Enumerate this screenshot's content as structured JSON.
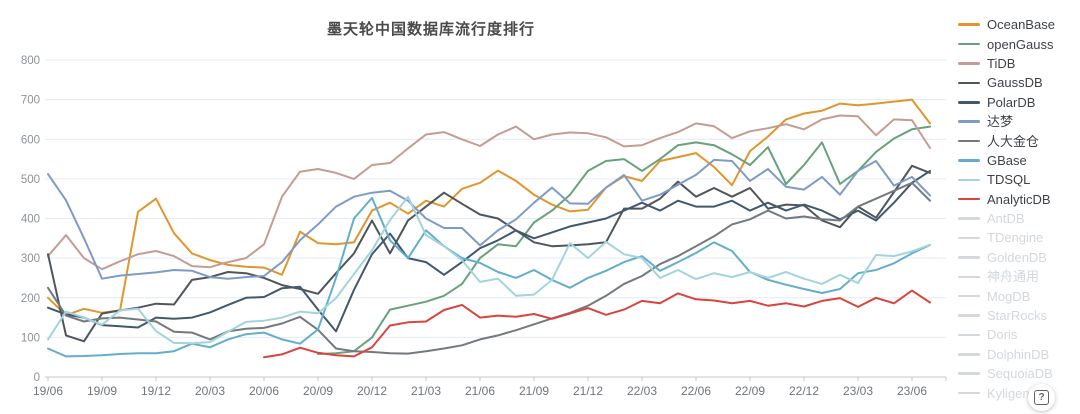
{
  "title": "墨天轮中国数据库流行度排行",
  "help_icon": {
    "label": "?"
  },
  "colors": {
    "grid": "#e4ecf7",
    "axis": "#c7cad0",
    "y_tick_label": "#8b929c",
    "x_tick_label": "#70757d",
    "title": "#4a4a4a",
    "legend_active_text": "#3d4248",
    "legend_inactive_text": "#d3d8dd"
  },
  "legend": {
    "items": [
      {
        "label": "OceanBase",
        "color": "#e1962b",
        "active": true
      },
      {
        "label": "openGauss",
        "color": "#67a27c",
        "active": true
      },
      {
        "label": "TiDB",
        "color": "#c49c93",
        "active": true
      },
      {
        "label": "GaussDB",
        "color": "#4e565c",
        "active": true
      },
      {
        "label": "PolarDB",
        "color": "#42586e",
        "active": true
      },
      {
        "label": "达梦",
        "color": "#7e9bc6",
        "active": true
      },
      {
        "label": "人大金仓",
        "color": "#73797d",
        "active": true
      },
      {
        "label": "GBase",
        "color": "#64aecb",
        "active": true
      },
      {
        "label": "TDSQL",
        "color": "#a2d4dc",
        "active": true
      },
      {
        "label": "AnalyticDB",
        "color": "#d8453e",
        "active": true
      },
      {
        "label": "AntDB",
        "color": "#d3d8dd",
        "active": false
      },
      {
        "label": "TDengine",
        "color": "#d3d8dd",
        "active": false
      },
      {
        "label": "GoldenDB",
        "color": "#d3d8dd",
        "active": false
      },
      {
        "label": "神舟通用",
        "color": "#d3d8dd",
        "active": false
      },
      {
        "label": "MogDB",
        "color": "#d3d8dd",
        "active": false
      },
      {
        "label": "StarRocks",
        "color": "#d3d8dd",
        "active": false
      },
      {
        "label": "Doris",
        "color": "#d3d8dd",
        "active": false
      },
      {
        "label": "DolphinDB",
        "color": "#d3d8dd",
        "active": false
      },
      {
        "label": "SequoiaDB",
        "color": "#d3d8dd",
        "active": false
      },
      {
        "label": "Kyligence",
        "color": "#d3d8dd",
        "active": false
      }
    ]
  },
  "chart_data": {
    "type": "line",
    "title": "墨天轮中国数据库流行度排行",
    "xlabel": "",
    "ylabel": "",
    "ylim": [
      0,
      800
    ],
    "y_ticks": [
      0,
      100,
      200,
      300,
      400,
      500,
      600,
      700,
      800
    ],
    "grid": true,
    "legend_position": "right",
    "x": [
      "19/06",
      "19/07",
      "19/08",
      "19/09",
      "19/10",
      "19/11",
      "19/12",
      "20/01",
      "20/02",
      "20/03",
      "20/04",
      "20/05",
      "20/06",
      "20/07",
      "20/08",
      "20/09",
      "20/10",
      "20/11",
      "20/12",
      "21/01",
      "21/02",
      "21/03",
      "21/04",
      "21/05",
      "21/06",
      "21/07",
      "21/08",
      "21/09",
      "21/10",
      "21/11",
      "21/12",
      "22/01",
      "22/02",
      "22/03",
      "22/04",
      "22/05",
      "22/06",
      "22/07",
      "22/08",
      "22/09",
      "22/10",
      "22/11",
      "22/12",
      "23/01",
      "23/02",
      "23/03",
      "23/04",
      "23/05",
      "23/06",
      "23/07"
    ],
    "x_tick_labels": [
      "19/06",
      "19/09",
      "19/12",
      "20/03",
      "20/06",
      "20/09",
      "20/12",
      "21/03",
      "21/06",
      "21/09",
      "21/12",
      "22/03",
      "22/06",
      "22/09",
      "22/12",
      "23/03",
      "23/06"
    ],
    "series": [
      {
        "name": "OceanBase",
        "color": "#e1962b",
        "values": [
          200,
          156,
          172,
          162,
          168,
          417,
          450,
          363,
          312,
          295,
          283,
          278,
          276,
          258,
          367,
          338,
          335,
          340,
          420,
          440,
          412,
          445,
          430,
          475,
          490,
          521,
          495,
          460,
          435,
          418,
          422,
          478,
          507,
          495,
          545,
          555,
          565,
          530,
          484,
          570,
          607,
          650,
          665,
          672,
          690,
          686,
          690,
          695,
          700,
          640
        ]
      },
      {
        "name": "openGauss",
        "color": "#67a27c",
        "values": [
          null,
          null,
          null,
          null,
          null,
          null,
          null,
          null,
          null,
          null,
          null,
          null,
          null,
          null,
          null,
          58,
          60,
          65,
          100,
          170,
          180,
          190,
          205,
          235,
          300,
          335,
          330,
          390,
          420,
          460,
          520,
          545,
          550,
          520,
          550,
          585,
          592,
          585,
          562,
          535,
          580,
          487,
          535,
          592,
          487,
          520,
          568,
          602,
          625,
          632
        ]
      },
      {
        "name": "TiDB",
        "color": "#c49c93",
        "values": [
          305,
          358,
          300,
          272,
          292,
          310,
          318,
          305,
          280,
          277,
          290,
          300,
          335,
          455,
          518,
          525,
          515,
          500,
          535,
          540,
          577,
          612,
          618,
          600,
          583,
          612,
          632,
          600,
          612,
          617,
          615,
          605,
          582,
          585,
          603,
          618,
          640,
          633,
          603,
          620,
          628,
          638,
          625,
          650,
          660,
          658,
          610,
          650,
          648,
          578
        ]
      },
      {
        "name": "GaussDB",
        "color": "#4e565c",
        "values": [
          310,
          105,
          90,
          160,
          168,
          175,
          185,
          183,
          245,
          252,
          265,
          262,
          250,
          232,
          222,
          210,
          262,
          312,
          395,
          312,
          395,
          430,
          465,
          437,
          410,
          400,
          370,
          340,
          330,
          332,
          335,
          340,
          425,
          425,
          450,
          493,
          455,
          477,
          455,
          477,
          425,
          435,
          433,
          395,
          378,
          430,
          402,
          467,
          533,
          515
        ]
      },
      {
        "name": "PolarDB",
        "color": "#42586e",
        "values": [
          175,
          158,
          150,
          131,
          128,
          125,
          150,
          147,
          150,
          163,
          182,
          200,
          202,
          224,
          228,
          170,
          115,
          220,
          310,
          362,
          300,
          290,
          258,
          290,
          325,
          345,
          370,
          350,
          365,
          380,
          390,
          400,
          420,
          440,
          420,
          445,
          430,
          430,
          445,
          420,
          440,
          420,
          435,
          420,
          398,
          420,
          395,
          440,
          490,
          520
        ]
      },
      {
        "name": "达梦",
        "color": "#7e9bc6",
        "values": [
          512,
          446,
          350,
          248,
          256,
          260,
          264,
          270,
          268,
          252,
          248,
          252,
          255,
          290,
          345,
          385,
          430,
          455,
          465,
          470,
          445,
          400,
          376,
          376,
          332,
          370,
          398,
          440,
          478,
          438,
          437,
          478,
          510,
          445,
          460,
          485,
          510,
          548,
          545,
          495,
          525,
          480,
          473,
          505,
          460,
          520,
          545,
          483,
          505,
          458
        ]
      },
      {
        "name": "人大金仓",
        "color": "#73797d",
        "values": [
          225,
          155,
          140,
          148,
          150,
          145,
          140,
          114,
          112,
          95,
          115,
          122,
          124,
          135,
          152,
          119,
          72,
          65,
          63,
          60,
          59,
          65,
          72,
          80,
          95,
          105,
          118,
          133,
          148,
          162,
          180,
          205,
          235,
          255,
          285,
          305,
          330,
          355,
          385,
          398,
          420,
          400,
          405,
          398,
          395,
          430,
          450,
          470,
          490,
          445
        ]
      },
      {
        "name": "GBase",
        "color": "#64aecb",
        "values": [
          72,
          52,
          53,
          55,
          58,
          60,
          60,
          65,
          84,
          75,
          95,
          108,
          112,
          95,
          84,
          120,
          250,
          400,
          452,
          345,
          300,
          370,
          330,
          300,
          288,
          265,
          250,
          270,
          245,
          225,
          250,
          268,
          290,
          305,
          268,
          290,
          313,
          340,
          318,
          265,
          245,
          233,
          222,
          212,
          222,
          262,
          270,
          287,
          312,
          333
        ]
      },
      {
        "name": "TDSQL",
        "color": "#a2d4dc",
        "values": [
          95,
          165,
          150,
          132,
          168,
          172,
          116,
          86,
          85,
          88,
          114,
          139,
          142,
          150,
          165,
          161,
          199,
          260,
          320,
          396,
          455,
          358,
          330,
          295,
          240,
          248,
          205,
          208,
          245,
          338,
          300,
          341,
          310,
          300,
          250,
          270,
          247,
          262,
          252,
          265,
          250,
          265,
          248,
          235,
          258,
          237,
          308,
          305,
          317,
          334
        ]
      },
      {
        "name": "AnalyticDB",
        "color": "#d8453e",
        "values": [
          null,
          null,
          null,
          null,
          null,
          null,
          null,
          null,
          null,
          null,
          null,
          null,
          50,
          57,
          74,
          61,
          55,
          52,
          75,
          130,
          138,
          140,
          169,
          182,
          150,
          155,
          152,
          159,
          147,
          160,
          174,
          157,
          170,
          192,
          186,
          211,
          196,
          193,
          186,
          192,
          180,
          186,
          178,
          192,
          199,
          177,
          200,
          186,
          218,
          188
        ]
      }
    ]
  }
}
